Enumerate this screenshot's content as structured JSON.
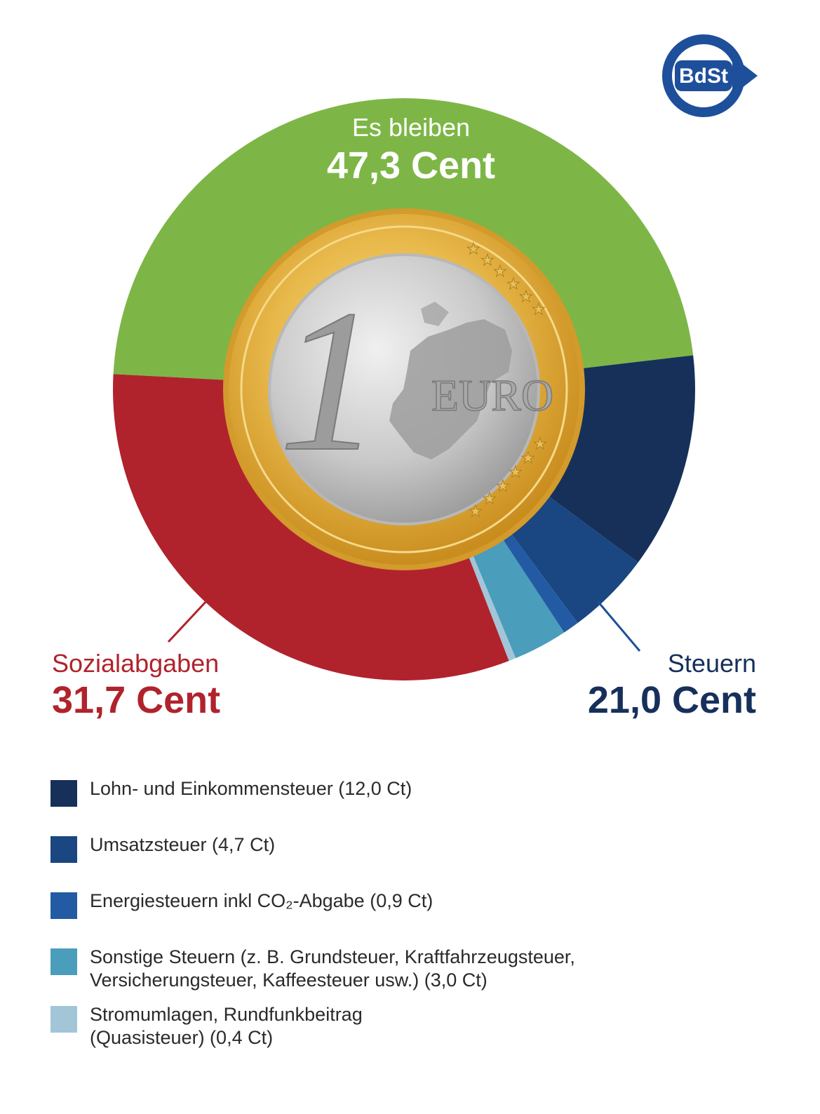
{
  "logo": {
    "text": "BdSt",
    "color": "#1e4f9a"
  },
  "chart_data": {
    "type": "pie",
    "style": "donut",
    "segments": [
      {
        "name": "Es bleiben",
        "value": 47.3,
        "color": "#7db646"
      },
      {
        "name": "Lohn- und Einkommensteuer",
        "value": 12.0,
        "color": "#16305a"
      },
      {
        "name": "Umsatzsteuer",
        "value": 4.7,
        "color": "#1a4682"
      },
      {
        "name": "Energiesteuern inkl CO₂-Abgabe",
        "value": 0.9,
        "color": "#225ba3"
      },
      {
        "name": "Sonstige Steuern",
        "value": 3.0,
        "color": "#4a9dbb"
      },
      {
        "name": "Stromumlagen, Rundfunkbeitrag",
        "value": 0.4,
        "color": "#a3c5d8"
      },
      {
        "name": "Sozialabgaben",
        "value": 31.7,
        "color": "#b0232c"
      }
    ],
    "groups": {
      "bleiben": {
        "label": "Es bleiben",
        "value_text": "47,3 Cent",
        "color": "#ffffff"
      },
      "sozial": {
        "label": "Sozialabgaben",
        "value_text": "31,7 Cent",
        "color": "#b0232c"
      },
      "steuern": {
        "label": "Steuern",
        "value_text": "21,0 Cent",
        "color": "#16305a"
      }
    },
    "coin": {
      "numeral": "1",
      "text": "EURO"
    },
    "legend": [
      {
        "text": "Lohn- und Einkommensteuer (12,0 Ct)",
        "color": "#16305a"
      },
      {
        "text": "Umsatzsteuer (4,7 Ct)",
        "color": "#1a4682"
      },
      {
        "text": "Energiesteuern inkl CO₂-Abgabe (0,9 Ct)",
        "color": "#225ba3"
      },
      {
        "text": "Sonstige Steuern (z. B. Grundsteuer, Kraftfahrzeugsteuer,\nVersicherungsteuer, Kaffeesteuer usw.) (3,0 Ct)",
        "color": "#4a9dbb"
      },
      {
        "text": "Stromumlagen, Rundfunkbeitrag\n(Quasisteuer) (0,4 Ct)",
        "color": "#a3c5d8"
      }
    ]
  }
}
